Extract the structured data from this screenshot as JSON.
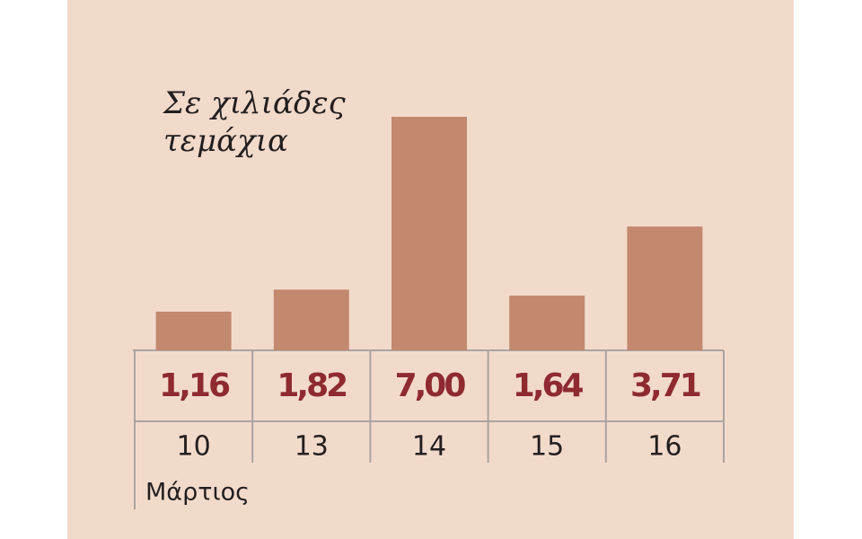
{
  "chart_data": {
    "type": "bar",
    "title": "Σε χιλιάδες τεμάχια",
    "x_label": "Μάρτιος",
    "categories": [
      "10",
      "13",
      "14",
      "15",
      "16"
    ],
    "values": [
      1.16,
      1.82,
      7.0,
      1.64,
      3.71
    ],
    "value_labels": [
      "1,16",
      "1,82",
      "7,00",
      "1,64",
      "3,71"
    ],
    "color": "#c2896e",
    "label_color": "#8e2a30"
  }
}
